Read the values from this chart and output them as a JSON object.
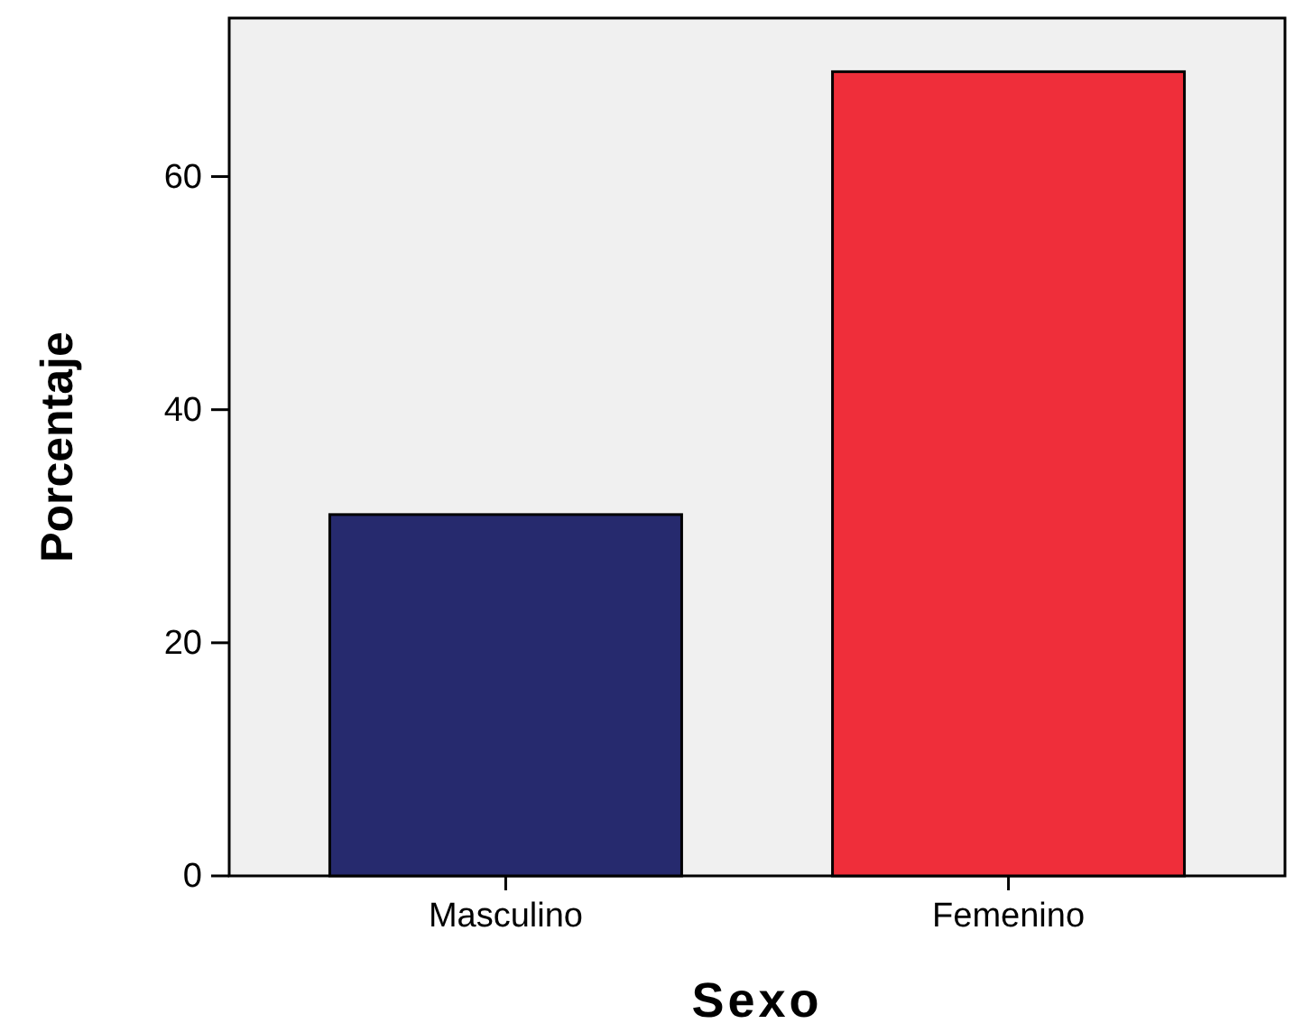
{
  "chart_data": {
    "type": "bar",
    "xlabel": "Sexo",
    "ylabel": "Porcentaje",
    "categories": [
      "Masculino",
      "Femenino"
    ],
    "values": [
      31,
      69
    ],
    "colors": [
      "#262a6e",
      "#ef2e3a"
    ],
    "ylim": [
      0,
      73.6
    ],
    "yticks": [
      0,
      20,
      40,
      60
    ],
    "grid": false
  }
}
